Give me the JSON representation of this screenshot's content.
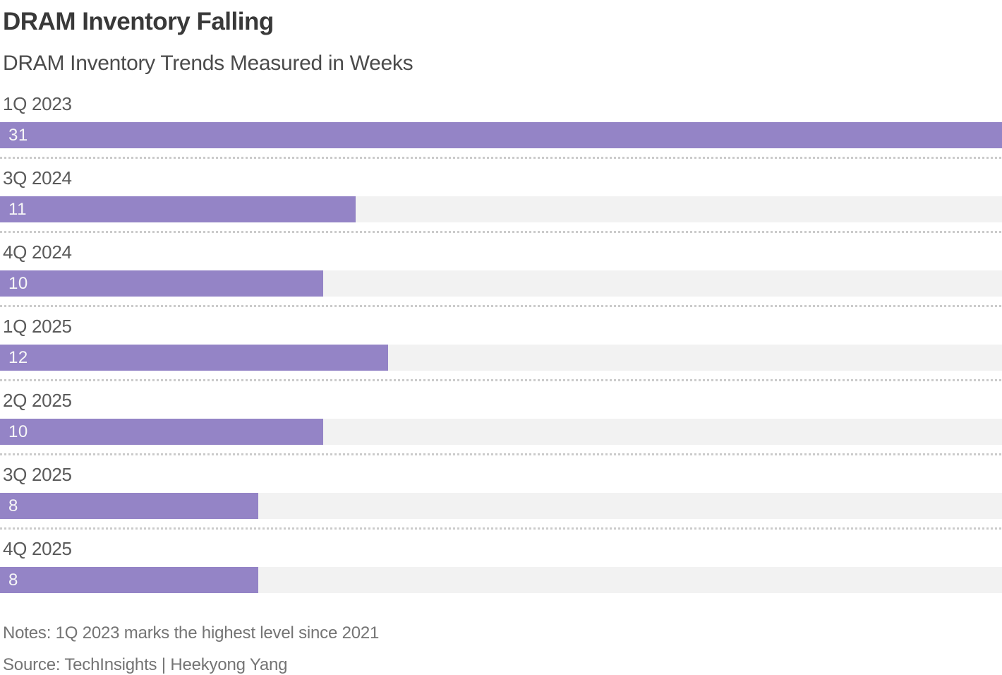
{
  "header": {
    "title": "DRAM Inventory Falling",
    "subtitle": "DRAM Inventory Trends Measured in Weeks"
  },
  "chart_data": {
    "type": "bar",
    "orientation": "horizontal",
    "title": "DRAM Inventory Falling",
    "subtitle": "DRAM Inventory Trends Measured in Weeks",
    "unit": "weeks",
    "categories": [
      "1Q 2023",
      "3Q 2024",
      "4Q 2024",
      "1Q 2025",
      "2Q 2025",
      "3Q 2025",
      "4Q 2025"
    ],
    "values": [
      31,
      11,
      10,
      12,
      10,
      8,
      8
    ],
    "xlim": [
      0,
      31
    ],
    "value_labels": "inside-bar-left",
    "grid": false,
    "legend": false,
    "bar_color": "#9484c6",
    "track_color": "#f2f2f2",
    "separator_color": "#cbcbcb"
  },
  "footer": {
    "notes": "Notes: 1Q 2023 marks the highest level since 2021",
    "source": "Source: TechInsights | Heekyong Yang"
  }
}
